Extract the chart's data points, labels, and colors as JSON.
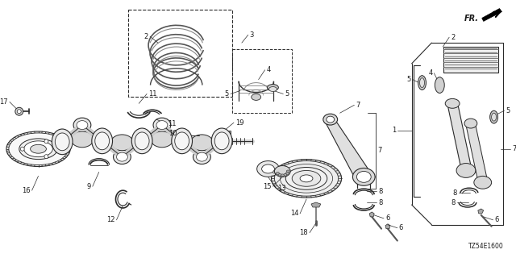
{
  "bg_color": "#ffffff",
  "diagram_code": "TZ54E1600",
  "line_color": "#2a2a2a",
  "text_color": "#1a1a1a",
  "fig_width": 6.4,
  "fig_height": 3.2,
  "dpi": 100,
  "label_fontsize": 6.0,
  "title_fontsize": 8.0
}
